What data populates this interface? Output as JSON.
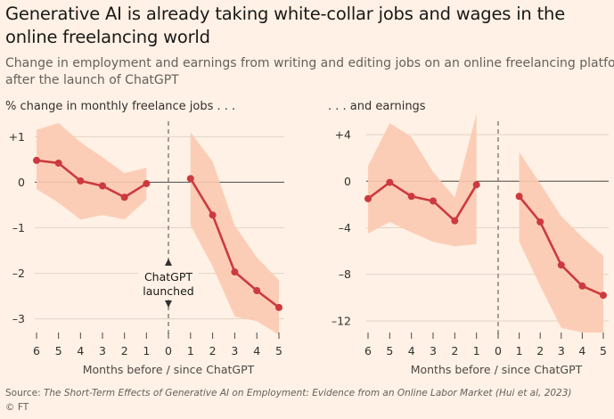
{
  "title": "Generative AI is already taking white-collar jobs and wages in the online freelancing world",
  "subtitle_line1": "Change in employment and earnings from writing and editing jobs on an online freelancing platform",
  "subtitle_line2": "after the launch of ChatGPT",
  "annotation": {
    "line1": "ChatGPT",
    "line2": "launched"
  },
  "source_label": "Source: ",
  "source_text": "The Short-Term Effects of Generative AI on Employment: Evidence from an Online Labor Market (Hui et al, 2023)",
  "copyright": "© FT",
  "colors": {
    "line": "#cc3a3f",
    "band": "#fcc9b0",
    "grid": "#e3d3c6",
    "zero": "#4d4845",
    "text": "#33302e"
  },
  "chart_data": [
    {
      "type": "line",
      "title": "% change in monthly freelance jobs . . .",
      "xlabel": "Months before / since ChatGPT",
      "ylabel": "",
      "ylim": [
        -3.3,
        1.3
      ],
      "yticks": [
        1,
        0,
        -1,
        -2,
        -3
      ],
      "ytick_labels": [
        "+1",
        "0",
        "–1",
        "–2",
        "–3"
      ],
      "xtick_labels": [
        "6",
        "5",
        "4",
        "3",
        "2",
        "1",
        "0",
        "1",
        "2",
        "3",
        "4",
        "5"
      ],
      "series": [
        {
          "name": "before",
          "x": [
            -6,
            -5,
            -4,
            -3,
            -2,
            -1
          ],
          "values": [
            0.48,
            0.42,
            0.03,
            -0.08,
            -0.33,
            -0.03
          ],
          "lower": [
            -0.15,
            -0.45,
            -0.82,
            -0.72,
            -0.82,
            -0.38
          ],
          "upper": [
            1.15,
            1.3,
            0.88,
            0.55,
            0.2,
            0.32
          ]
        },
        {
          "name": "after",
          "x": [
            1,
            2,
            3,
            4,
            5
          ],
          "values": [
            0.08,
            -0.72,
            -1.97,
            -2.38,
            -2.75
          ],
          "lower": [
            -0.95,
            -1.85,
            -2.95,
            -3.05,
            -3.35
          ],
          "upper": [
            1.1,
            0.45,
            -0.95,
            -1.65,
            -2.15
          ]
        }
      ]
    },
    {
      "type": "line",
      "title": ". . . and earnings",
      "xlabel": "Months before / since ChatGPT",
      "ylabel": "",
      "ylim": [
        -13,
        5
      ],
      "yticks": [
        4,
        0,
        -4,
        -8,
        -12
      ],
      "ytick_labels": [
        "+4",
        "0",
        "–4",
        "–8",
        "–12"
      ],
      "xtick_labels": [
        "6",
        "5",
        "4",
        "3",
        "2",
        "1",
        "0",
        "1",
        "2",
        "3",
        "4",
        "5"
      ],
      "series": [
        {
          "name": "before",
          "x": [
            -6,
            -5,
            -4,
            -3,
            -2,
            -1
          ],
          "values": [
            -1.5,
            -0.1,
            -1.3,
            -1.7,
            -3.4,
            -0.3
          ],
          "lower": [
            -4.5,
            -3.5,
            -4.4,
            -5.2,
            -5.6,
            -5.4
          ],
          "upper": [
            1.3,
            5.0,
            3.8,
            0.8,
            -1.4,
            5.8
          ]
        },
        {
          "name": "after",
          "x": [
            1,
            2,
            3,
            4,
            5
          ],
          "values": [
            -1.3,
            -3.5,
            -7.2,
            -9.0,
            -9.8
          ],
          "lower": [
            -5.2,
            -9.0,
            -12.6,
            -13.0,
            -13.0
          ],
          "upper": [
            2.5,
            -0.2,
            -3.0,
            -4.8,
            -6.4
          ]
        }
      ]
    }
  ]
}
